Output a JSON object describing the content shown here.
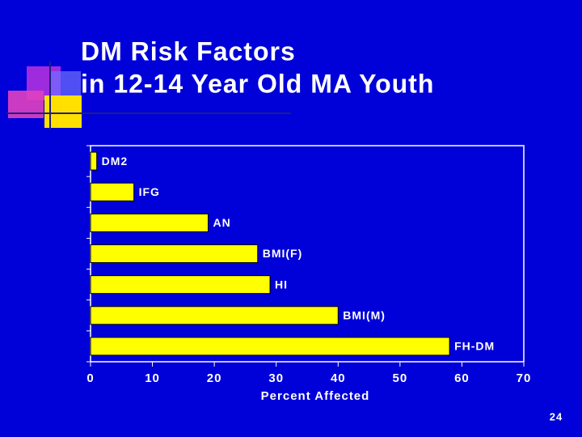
{
  "chart_data": {
    "type": "bar",
    "orientation": "horizontal",
    "title": "DM Risk Factors",
    "subtitle": "in 12-14 Year Old MA Youth",
    "categories": [
      "DM2",
      "IFG",
      "AN",
      "BMI(F)",
      "HI",
      "BMI(M)",
      "FH-DM"
    ],
    "values": [
      1,
      7,
      19,
      27,
      29,
      40,
      58
    ],
    "color": "#ffff00",
    "xlabel": "Percent Affected",
    "xlim": [
      0,
      70
    ],
    "xticks": [
      0,
      10,
      20,
      30,
      40,
      50,
      60,
      70
    ],
    "grid": false
  },
  "page_number": "24"
}
